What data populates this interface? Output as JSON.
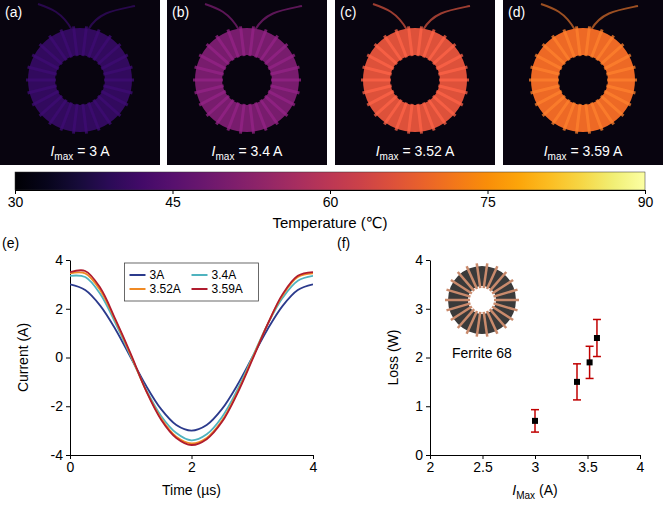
{
  "images": [
    {
      "letter": "(a)",
      "symbol": "I",
      "subscript": "max",
      "value_text": "= 3 A",
      "temperature": 40
    },
    {
      "letter": "(b)",
      "symbol": "I",
      "subscript": "max",
      "value_text": "= 3.4 A",
      "temperature": 50
    },
    {
      "letter": "(c)",
      "symbol": "I",
      "subscript": "max",
      "value_text": "= 3.52 A",
      "temperature": 66
    },
    {
      "letter": "(d)",
      "symbol": "I",
      "subscript": "max",
      "value_text": "= 3.59 A",
      "temperature": 70
    }
  ],
  "colorbar": {
    "title": "Temperature (℃)",
    "range": [
      30,
      90
    ],
    "ticks": [
      30,
      45,
      60,
      75,
      90
    ]
  },
  "chart_data": [
    {
      "type": "line",
      "panel_label": "(e)",
      "xlabel": "Time (µs)",
      "ylabel": "Current (A)",
      "x": [
        0,
        0.25,
        0.5,
        0.75,
        1,
        1.25,
        1.5,
        1.75,
        2,
        2.25,
        2.5,
        2.75,
        3,
        3.25,
        3.5,
        3.75,
        4
      ],
      "xlim": [
        0,
        4
      ],
      "xticks": [
        0,
        2,
        4
      ],
      "ylim": [
        -4,
        4
      ],
      "yticks": [
        -4,
        -2,
        0,
        2,
        4
      ],
      "legend": "upper center",
      "series": [
        {
          "name": "3A",
          "color": "#2b3a8c",
          "values": [
            3.0,
            2.77,
            2.12,
            1.15,
            0,
            -1.15,
            -2.12,
            -2.77,
            -3.0,
            -2.77,
            -2.12,
            -1.15,
            0,
            1.15,
            2.12,
            2.77,
            3.0
          ]
        },
        {
          "name": "3.4A",
          "color": "#4fb3bf",
          "values": [
            3.35,
            3.3,
            2.6,
            1.4,
            0.05,
            -1.3,
            -2.4,
            -3.1,
            -3.4,
            -3.15,
            -2.45,
            -1.35,
            0,
            1.35,
            2.45,
            3.15,
            3.35
          ]
        },
        {
          "name": "3.52A",
          "color": "#f08a24",
          "values": [
            3.45,
            3.45,
            2.75,
            1.5,
            0.1,
            -1.35,
            -2.5,
            -3.25,
            -3.52,
            -3.3,
            -2.6,
            -1.45,
            -0.05,
            1.35,
            2.55,
            3.3,
            3.45
          ]
        },
        {
          "name": "3.59A",
          "color": "#b01c2e",
          "values": [
            3.5,
            3.55,
            2.85,
            1.55,
            0.15,
            -1.35,
            -2.55,
            -3.3,
            -3.59,
            -3.35,
            -2.65,
            -1.5,
            -0.1,
            1.35,
            2.6,
            3.35,
            3.5
          ]
        }
      ]
    },
    {
      "type": "scatter",
      "panel_label": "(f)",
      "xlabel": {
        "symbol": "I",
        "subscript": "Max",
        "unit": "(A)"
      },
      "ylabel": "Loss (W)",
      "annotation": "Ferrite 68",
      "x": [
        3,
        3.4,
        3.52,
        3.59
      ],
      "values": [
        0.7,
        1.5,
        1.9,
        2.4
      ],
      "errors": [
        0.23,
        0.37,
        0.33,
        0.38
      ],
      "color": "#000000",
      "marker": "square",
      "xlim": [
        2,
        4
      ],
      "xticks": [
        2,
        2.5,
        3,
        3.5,
        4
      ],
      "ylim": [
        0,
        4
      ],
      "yticks": [
        0,
        1,
        2,
        3,
        4
      ]
    }
  ]
}
